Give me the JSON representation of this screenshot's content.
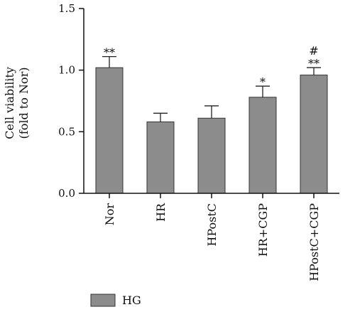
{
  "chart_data": {
    "type": "bar",
    "categories": [
      "Nor",
      "HR",
      "HPostC",
      "HR+CGP",
      "HPostC+CGP"
    ],
    "series": [
      {
        "name": "HG",
        "values": [
          1.02,
          0.58,
          0.61,
          0.78,
          0.96
        ],
        "errors": [
          0.09,
          0.07,
          0.1,
          0.09,
          0.06
        ],
        "color": "#8c8c8c"
      }
    ],
    "annotations": [
      {
        "category": "Nor",
        "labels": [
          "**"
        ]
      },
      {
        "category": "HR+CGP",
        "labels": [
          "*"
        ]
      },
      {
        "category": "HPostC+CGP",
        "labels": [
          "#",
          "**"
        ]
      }
    ],
    "ylabel_line1": "Cell viability",
    "ylabel_line2": "(fold to Nor)",
    "ylim": [
      0,
      1.5
    ],
    "yticks": [
      0.0,
      0.5,
      1.0,
      1.5
    ],
    "ytick_labels": [
      "0.0",
      "0.5",
      "1.0",
      "1.5"
    ],
    "legend_label": "HG",
    "legend_position": "bottom-left",
    "grid": false
  }
}
